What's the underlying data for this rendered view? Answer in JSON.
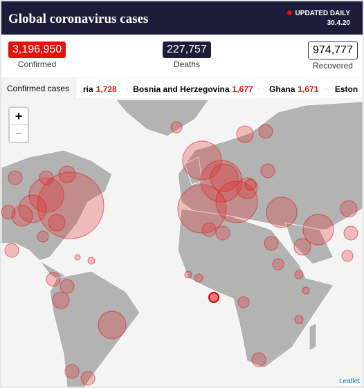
{
  "header": {
    "title": "Global coronavirus cases",
    "badge": "UPDATED DAILY",
    "date": "30.4.20"
  },
  "stats": [
    {
      "value": "3,196,950",
      "label": "Confirmed"
    },
    {
      "value": "227,757",
      "label": "Deaths"
    },
    {
      "value": "974,777",
      "label": "Recovered"
    }
  ],
  "tab": "Confirmed cases",
  "ticker": [
    {
      "name": "ria",
      "value": "1,728"
    },
    {
      "name": "Bosnia and Herzegovina",
      "value": "1,677"
    },
    {
      "name": "Ghana",
      "value": "1,671"
    },
    {
      "name": "Eston",
      "value": ""
    }
  ],
  "map": {
    "zoom_in": "+",
    "zoom_out": "−",
    "attribution": "Leaflet"
  }
}
